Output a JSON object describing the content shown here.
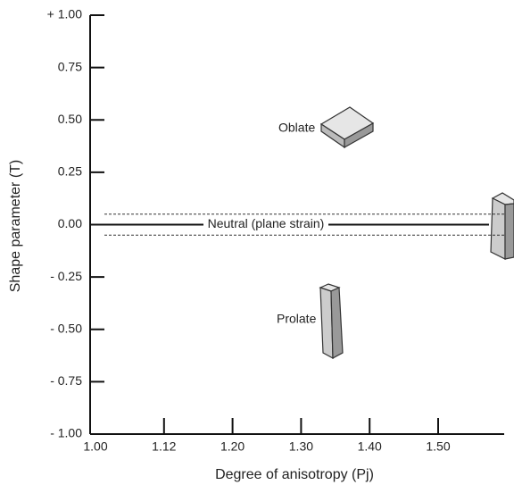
{
  "chart_data": {
    "type": "axes",
    "xlabel": "Degree of anisotropy (Pj)",
    "ylabel": "Shape parameter (T)",
    "ylim": [
      -1,
      1
    ],
    "yticks": [
      {
        "value": 1,
        "label": "+ 1.00"
      },
      {
        "value": 0.75,
        "label": "0.75"
      },
      {
        "value": 0.5,
        "label": "0.50"
      },
      {
        "value": 0.25,
        "label": "0.25"
      },
      {
        "value": 0,
        "label": "0.00"
      },
      {
        "value": -0.25,
        "label": "- 0.25"
      },
      {
        "value": -0.5,
        "label": "- 0.50"
      },
      {
        "value": -0.75,
        "label": "- 0.75"
      },
      {
        "value": -1,
        "label": "- 1.00"
      }
    ],
    "xticks": [
      {
        "value": 1,
        "label": "1.00"
      },
      {
        "value": 1.12,
        "label": "1.12"
      },
      {
        "value": 1.2,
        "label": "1.20"
      },
      {
        "value": 1.3,
        "label": "1.30"
      },
      {
        "value": 1.4,
        "label": "1.40"
      },
      {
        "value": 1.5,
        "label": "1.50"
      }
    ],
    "neutral_band": [
      -0.05,
      0.05
    ],
    "neutral_label": "Neutral (plane strain)",
    "annotations": [
      "Oblate",
      "Prolate"
    ]
  }
}
